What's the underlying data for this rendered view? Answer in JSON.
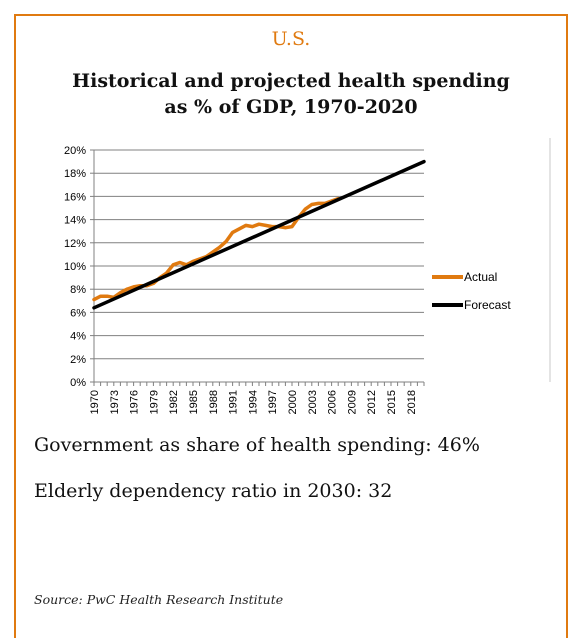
{
  "region": "U.S.",
  "title_line1": "Historical and projected health spending",
  "title_line2": "as % of GDP, 1970-2020",
  "stats": [
    "Government as share of health spending: 46%",
    "Elderly dependency ratio in 2030: 32"
  ],
  "source": "Source: PwC Health Research Institute",
  "colors": {
    "border": "#e07a10",
    "actual": "#e07a10",
    "forecast": "#000000",
    "grid": "#808080"
  },
  "chart_data": {
    "type": "line",
    "title": "Historical and projected health spending as % of GDP, 1970-2020",
    "xlabel": "",
    "ylabel": "",
    "xlim": [
      1970,
      2020
    ],
    "ylim": [
      0,
      20
    ],
    "y_ticks": [
      "0%",
      "2%",
      "4%",
      "6%",
      "8%",
      "10%",
      "12%",
      "14%",
      "16%",
      "18%",
      "20%"
    ],
    "x_tick_labels": [
      "1970",
      "1973",
      "1976",
      "1979",
      "1982",
      "1985",
      "1988",
      "1991",
      "1994",
      "1997",
      "2000",
      "2003",
      "2006",
      "2009",
      "2012",
      "2015",
      "2018"
    ],
    "grid": true,
    "legend_position": "right",
    "series": [
      {
        "name": "Actual",
        "x": [
          1970,
          1971,
          1972,
          1973,
          1974,
          1975,
          1976,
          1977,
          1978,
          1979,
          1980,
          1981,
          1982,
          1983,
          1984,
          1985,
          1986,
          1987,
          1988,
          1989,
          1990,
          1991,
          1992,
          1993,
          1994,
          1995,
          1996,
          1997,
          1998,
          1999,
          2000,
          2001,
          2002,
          2003,
          2004,
          2005,
          2006,
          2007
        ],
        "y": [
          7.1,
          7.4,
          7.4,
          7.3,
          7.7,
          8.0,
          8.2,
          8.3,
          8.3,
          8.5,
          9.0,
          9.4,
          10.1,
          10.3,
          10.1,
          10.4,
          10.6,
          10.8,
          11.2,
          11.6,
          12.1,
          12.9,
          13.2,
          13.5,
          13.4,
          13.6,
          13.5,
          13.4,
          13.4,
          13.3,
          13.4,
          14.2,
          14.9,
          15.3,
          15.4,
          15.4,
          15.6,
          15.8
        ]
      },
      {
        "name": "Forecast",
        "x": [
          1970,
          2020
        ],
        "y": [
          6.4,
          19.0
        ]
      }
    ]
  }
}
